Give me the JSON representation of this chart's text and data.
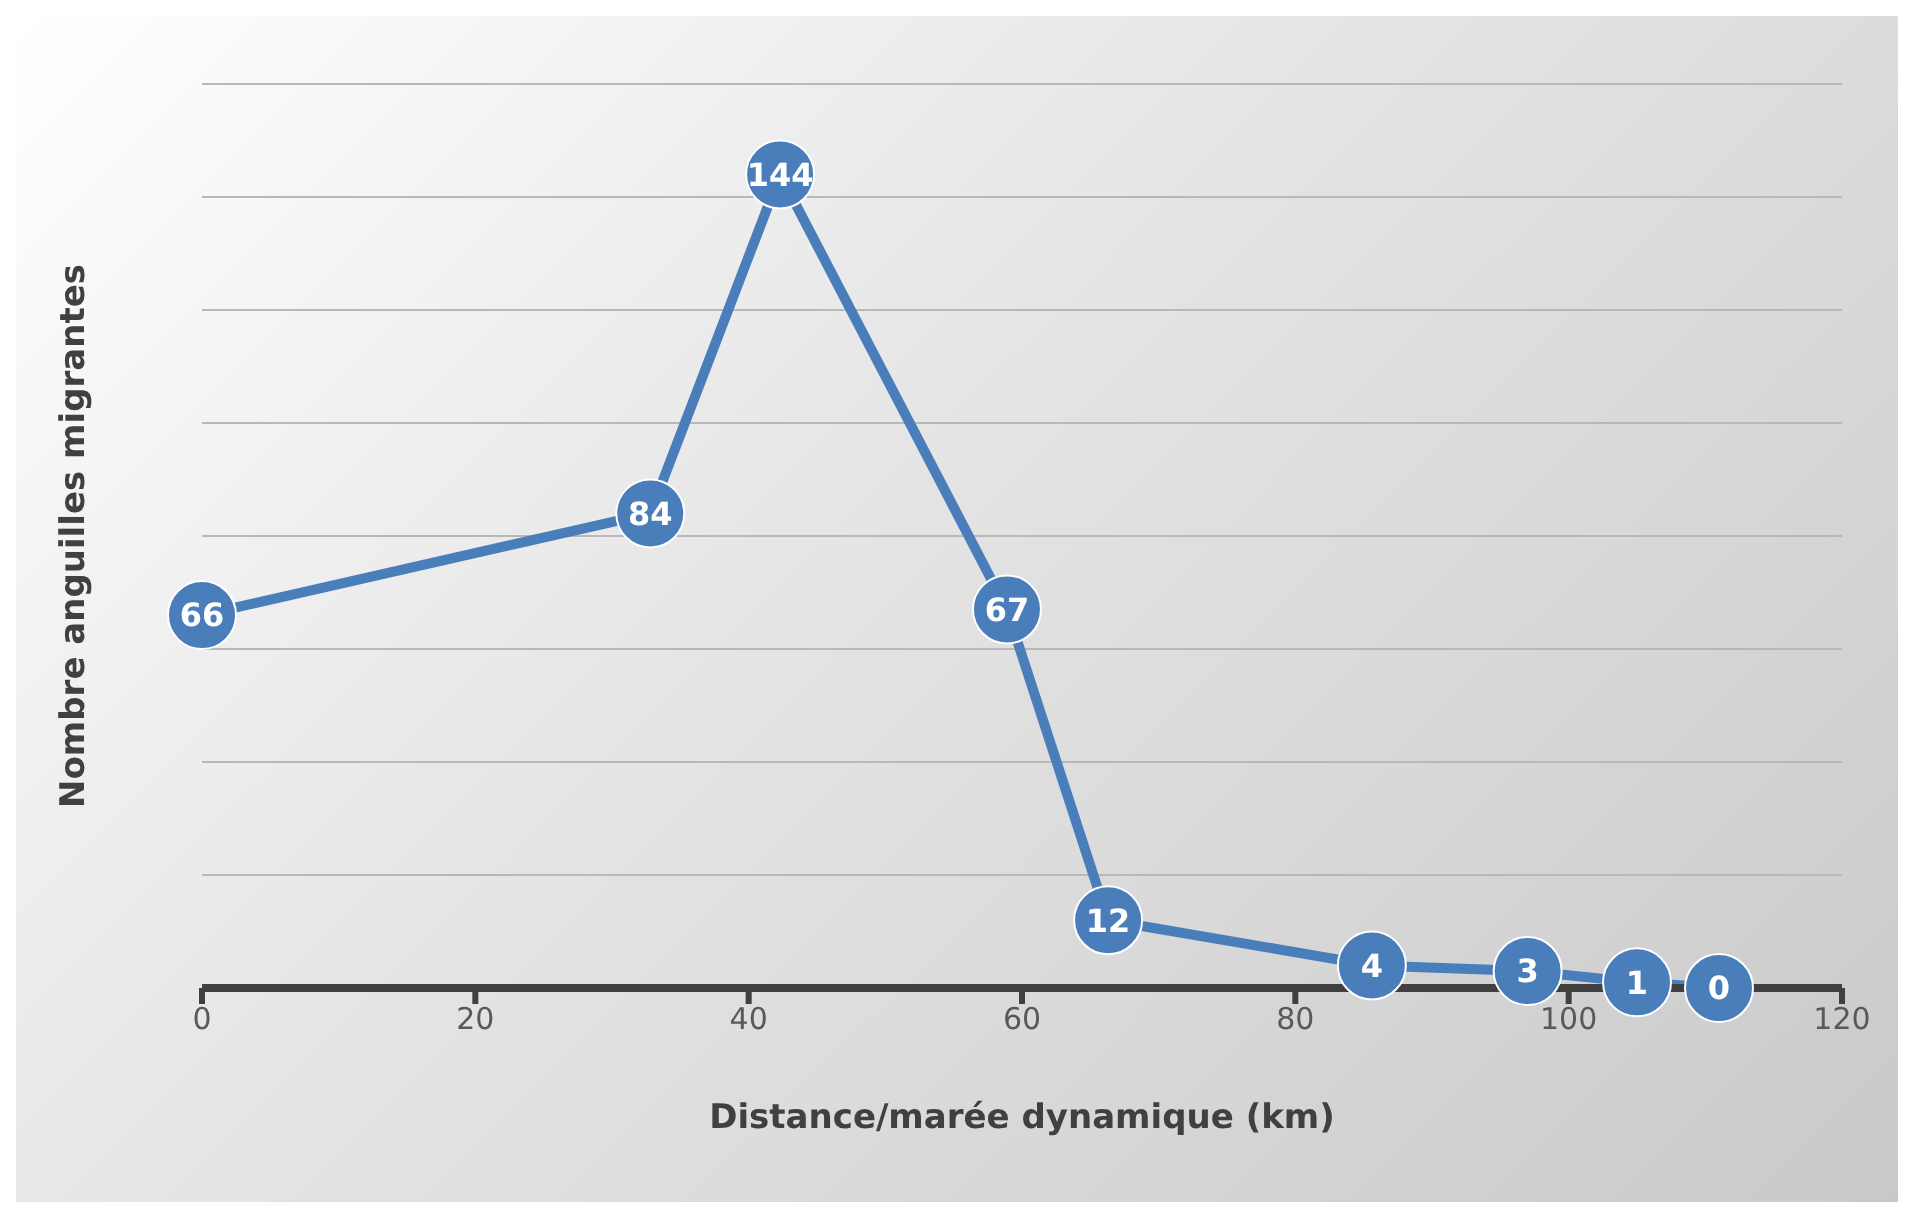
{
  "chart_data": {
    "type": "line",
    "xlabel": "Distance/marée dynamique (km)",
    "ylabel": "Nombre anguilles migrantes",
    "x": [
      0,
      32.8,
      42.3,
      58.9,
      66.3,
      85.6,
      97,
      105,
      111
    ],
    "series": [
      {
        "color": "#4a7ebb",
        "values": [
          66,
          84,
          144,
          67,
          12,
          4,
          3,
          1,
          0
        ]
      }
    ],
    "xlim": [
      0,
      120
    ],
    "xticks": [
      0,
      20,
      40,
      60,
      80,
      100,
      120
    ],
    "ylim": [
      0,
      160
    ],
    "tick_labels": "x",
    "grid": "y",
    "marker": "circle",
    "line_style": "solid",
    "data_labels": true
  }
}
